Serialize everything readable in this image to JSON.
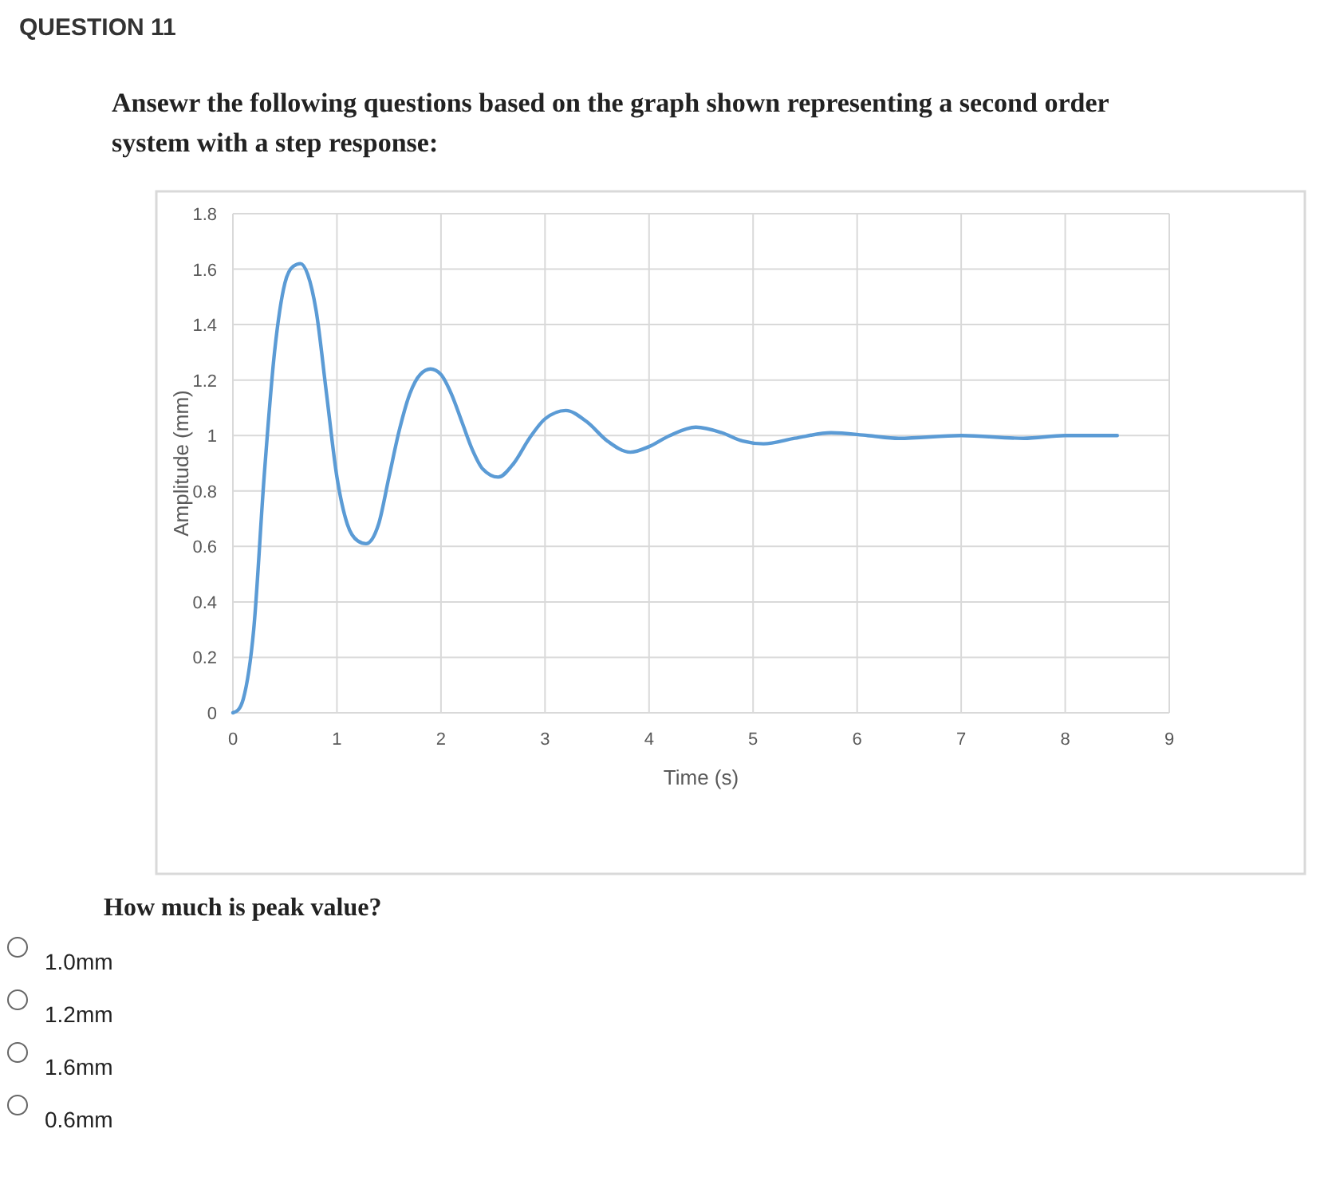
{
  "chart_data": {
    "type": "line",
    "title": "QUESTION 11",
    "subtitle": "Ansewr the following questions based on the graph shown representing a second order system with a step response:",
    "xlabel": "Time (s)",
    "ylabel": "Amplitude (mm)",
    "x": [
      0,
      0.05,
      0.1,
      0.2,
      0.3,
      0.4,
      0.5,
      0.58,
      0.65,
      0.72,
      0.8,
      0.9,
      1.0,
      1.1,
      1.2,
      1.28,
      1.4,
      1.5,
      1.6,
      1.7,
      1.8,
      1.9,
      2.0,
      2.1,
      2.2,
      2.3,
      2.4,
      2.55,
      2.7,
      2.85,
      3.0,
      3.2,
      3.4,
      3.6,
      3.82,
      4.0,
      4.2,
      4.45,
      4.7,
      4.9,
      5.1,
      5.4,
      5.75,
      6.1,
      6.4,
      7.0,
      7.6,
      8.0,
      8.5
    ],
    "series": [
      {
        "color": "#5b9bd5",
        "values": [
          0,
          0.01,
          0.05,
          0.3,
          0.85,
          1.3,
          1.55,
          1.61,
          1.62,
          1.58,
          1.45,
          1.15,
          0.85,
          0.68,
          0.62,
          0.61,
          0.68,
          0.85,
          1.02,
          1.15,
          1.22,
          1.24,
          1.22,
          1.15,
          1.05,
          0.95,
          0.88,
          0.85,
          0.9,
          0.99,
          1.06,
          1.09,
          1.05,
          0.98,
          0.94,
          0.96,
          1.0,
          1.03,
          1.01,
          0.98,
          0.97,
          0.99,
          1.01,
          1.0,
          0.99,
          1.0,
          0.99,
          1.0,
          1.0
        ]
      }
    ],
    "xlim": [
      0,
      9
    ],
    "xticks": [
      0,
      1,
      2,
      3,
      4,
      5,
      6,
      7,
      8,
      9
    ],
    "ylim": [
      0,
      1.8
    ],
    "yticks": [
      0,
      0.2,
      0.4,
      0.6,
      0.8,
      1,
      1.2,
      1.4,
      1.6,
      1.8
    ],
    "grid": true,
    "marker": "none",
    "line_style": "solid",
    "annotations": [
      "How much is peak value?",
      "1.0mm",
      "1.2mm",
      "1.6mm",
      "0.6mm"
    ]
  }
}
